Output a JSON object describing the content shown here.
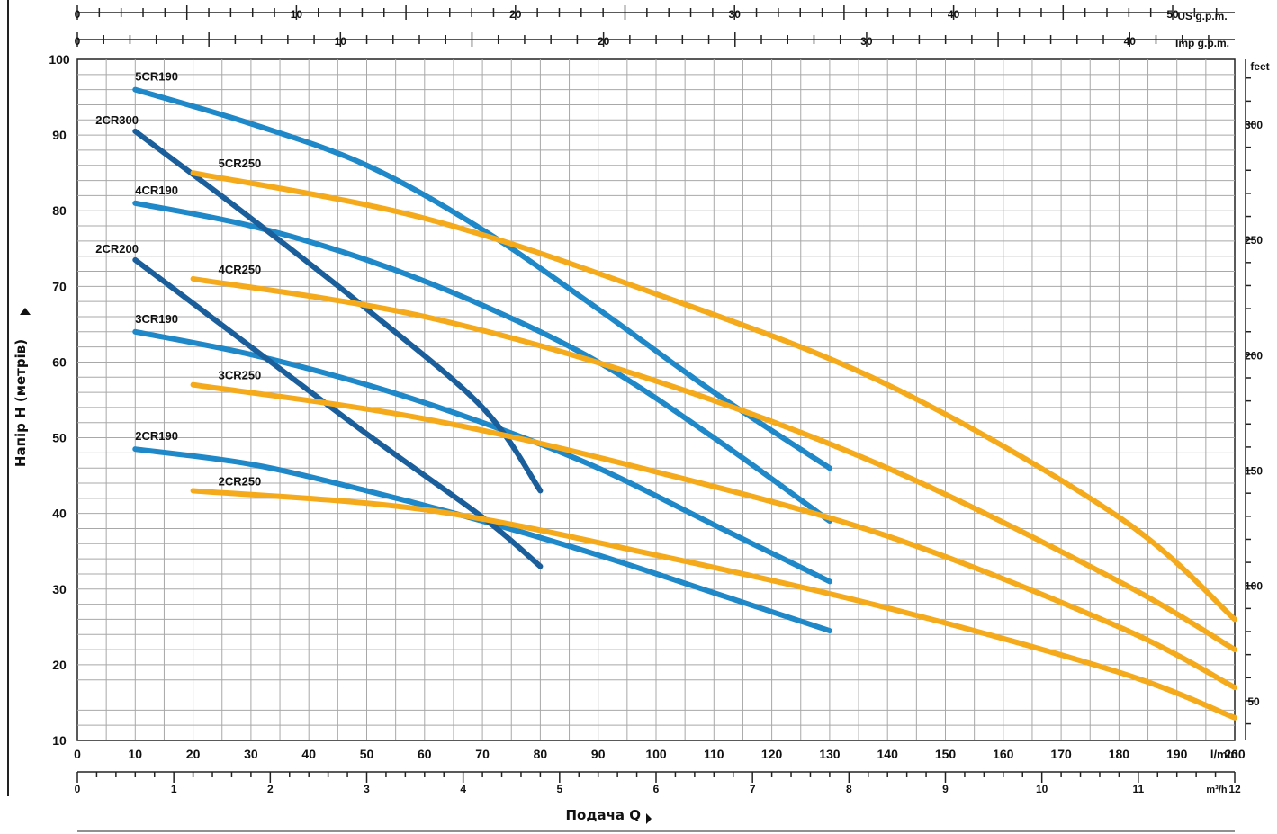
{
  "chart_data": {
    "type": "line",
    "title": "",
    "xlabel": "Подача Q",
    "ylabel": "Напір H (метрів)",
    "xlim": [
      0,
      200
    ],
    "ylim": [
      10,
      100
    ],
    "grid": true,
    "x_unit": "l/min",
    "x_ticks": [
      "0",
      "10",
      "20",
      "30",
      "40",
      "50",
      "60",
      "70",
      "80",
      "90",
      "100",
      "110",
      "120",
      "130",
      "140",
      "150",
      "160",
      "170",
      "180",
      "190",
      "200"
    ],
    "y_ticks": [
      "10",
      "20",
      "30",
      "40",
      "50",
      "60",
      "70",
      "80",
      "90",
      "100"
    ],
    "right_axis": {
      "unit": "feet",
      "ticks": [
        "50",
        "100",
        "150",
        "200",
        "250",
        "300"
      ]
    },
    "top_axes": [
      {
        "unit": "US g.p.m.",
        "ticks": [
          "0",
          "10",
          "20",
          "30",
          "40",
          "50"
        ]
      },
      {
        "unit": "Imp g.p.m.",
        "ticks": [
          "0",
          "10",
          "20",
          "30",
          "40"
        ]
      }
    ],
    "bottom_axis2": {
      "unit": "m³/h",
      "ticks": [
        "0",
        "1",
        "2",
        "3",
        "4",
        "5",
        "6",
        "7",
        "8",
        "9",
        "10",
        "11",
        "12"
      ]
    },
    "series": [
      {
        "name": "5CR190",
        "color": "#1e88c8",
        "points": [
          [
            10,
            96
          ],
          [
            30,
            91.5
          ],
          [
            50,
            86
          ],
          [
            70,
            77.5
          ],
          [
            90,
            67
          ],
          [
            110,
            56
          ],
          [
            130,
            46
          ]
        ]
      },
      {
        "name": "4CR190",
        "color": "#1e88c8",
        "points": [
          [
            10,
            81
          ],
          [
            30,
            78
          ],
          [
            50,
            73.5
          ],
          [
            70,
            67.5
          ],
          [
            90,
            60
          ],
          [
            110,
            50
          ],
          [
            130,
            39
          ]
        ]
      },
      {
        "name": "3CR190",
        "color": "#1e88c8",
        "points": [
          [
            10,
            64
          ],
          [
            30,
            61
          ],
          [
            50,
            57
          ],
          [
            70,
            52
          ],
          [
            90,
            46
          ],
          [
            110,
            38.5
          ],
          [
            130,
            31
          ]
        ]
      },
      {
        "name": "2CR190",
        "color": "#1e88c8",
        "points": [
          [
            10,
            48.5
          ],
          [
            30,
            46.5
          ],
          [
            50,
            43
          ],
          [
            70,
            39
          ],
          [
            90,
            34.5
          ],
          [
            110,
            29.5
          ],
          [
            130,
            24.5
          ]
        ]
      },
      {
        "name": "2CR300",
        "color": "#1a5f9c",
        "points": [
          [
            10,
            90.5
          ],
          [
            30,
            79
          ],
          [
            50,
            67
          ],
          [
            70,
            54
          ],
          [
            80,
            43
          ]
        ]
      },
      {
        "name": "2CR200",
        "color": "#1a5f9c",
        "points": [
          [
            10,
            73.5
          ],
          [
            30,
            62
          ],
          [
            50,
            50.5
          ],
          [
            70,
            39.5
          ],
          [
            80,
            33
          ]
        ]
      },
      {
        "name": "5CR250",
        "color": "#f5aa1c",
        "points": [
          [
            20,
            85
          ],
          [
            60,
            79
          ],
          [
            100,
            69
          ],
          [
            140,
            57
          ],
          [
            180,
            39.5
          ],
          [
            200,
            26
          ]
        ]
      },
      {
        "name": "4CR250",
        "color": "#f5aa1c",
        "points": [
          [
            20,
            71
          ],
          [
            60,
            66
          ],
          [
            100,
            57.5
          ],
          [
            140,
            46
          ],
          [
            180,
            31
          ],
          [
            200,
            22
          ]
        ]
      },
      {
        "name": "3CR250",
        "color": "#f5aa1c",
        "points": [
          [
            20,
            57
          ],
          [
            60,
            52.5
          ],
          [
            100,
            45.5
          ],
          [
            140,
            37
          ],
          [
            180,
            25
          ],
          [
            200,
            17
          ]
        ]
      },
      {
        "name": "2CR250",
        "color": "#f5aa1c",
        "points": [
          [
            20,
            43
          ],
          [
            60,
            40.5
          ],
          [
            100,
            34.5
          ],
          [
            140,
            27.5
          ],
          [
            180,
            19
          ],
          [
            200,
            13
          ]
        ]
      }
    ]
  }
}
